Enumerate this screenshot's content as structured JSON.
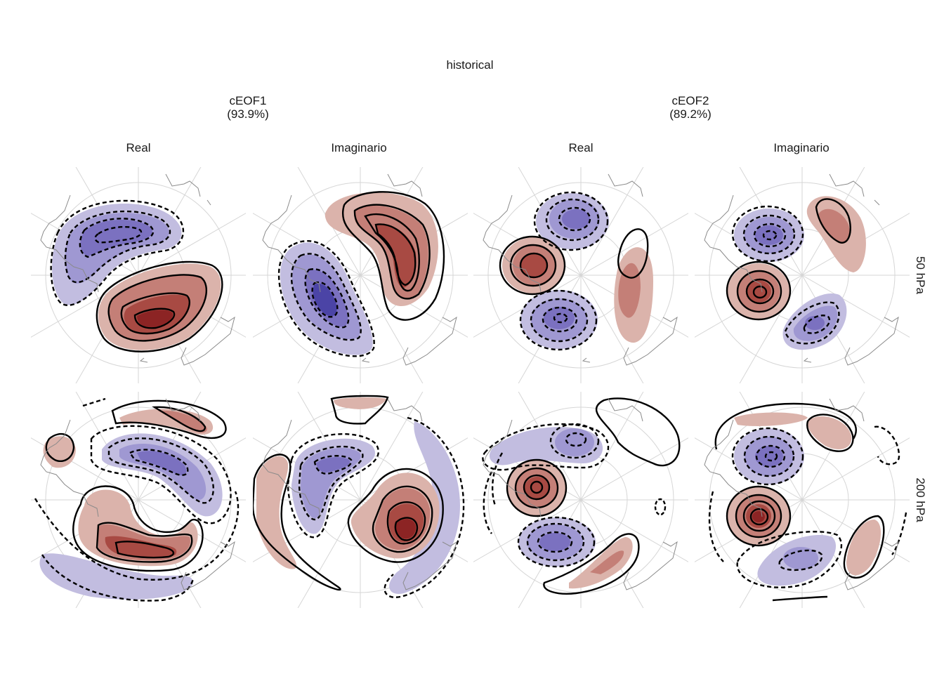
{
  "title": "historical",
  "groups": [
    {
      "name": "cEOF1",
      "variance": "(93.9%)"
    },
    {
      "name": "cEOF2",
      "variance": "(89.2%)"
    }
  ],
  "columns": [
    "Real",
    "Imaginario",
    "Real",
    "Imaginario"
  ],
  "rows": [
    "50 hPa",
    "200 hPa"
  ],
  "colors": {
    "positive_light": "#dbb3ab",
    "positive_mid": "#c47f77",
    "positive_dark": "#a84a43",
    "positive_core": "#8c2424",
    "negative_light": "#c2bde0",
    "negative_mid": "#9f98d2",
    "negative_dark": "#7b71c0",
    "negative_core": "#4b44a6",
    "grid": "#d6d6d6",
    "coast": "#8a8a8a"
  }
}
